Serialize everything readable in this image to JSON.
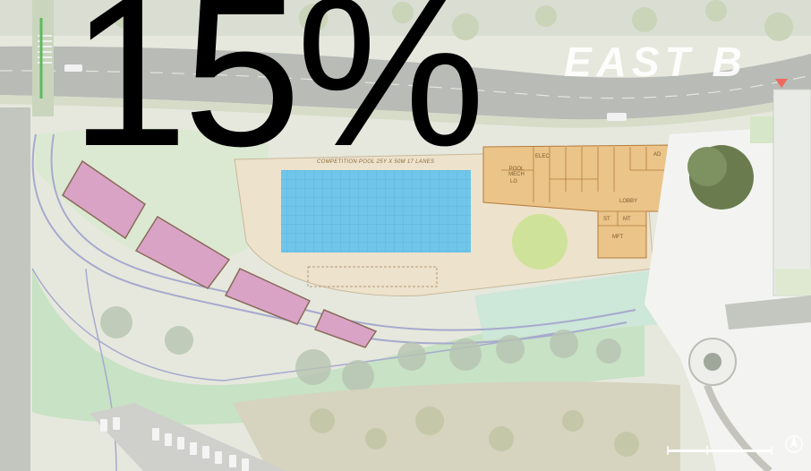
{
  "overlay": {
    "percent": "15%",
    "street": "EAST B"
  },
  "site_plan": {
    "pool_caption": "COMPETITION POOL 25y x 50m 17 LANES",
    "rooms": {
      "pool_mech": "POOL MECH",
      "elec": "ELEC",
      "lg": "LG",
      "ad": "AD",
      "lobby": "LOBBY",
      "st": "ST",
      "mt": "MT",
      "mft": "MFT"
    }
  },
  "colors": {
    "pool": "#6fc6ea",
    "building": "#ebc489",
    "entry_marker": "#ef6a5e",
    "parking_pink": "#d9a3c6"
  }
}
